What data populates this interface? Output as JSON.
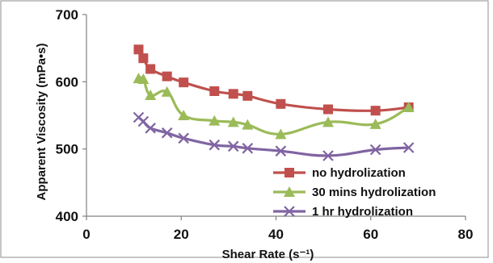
{
  "chart_data": {
    "type": "line",
    "title": "",
    "xlabel": "Shear Rate (s⁻¹)",
    "ylabel": "Apparent Viscosity  (mPa•s)",
    "xlim": [
      0,
      80
    ],
    "ylim": [
      400,
      700
    ],
    "xticks": [
      0,
      20,
      40,
      60,
      80
    ],
    "yticks": [
      400,
      500,
      600,
      700
    ],
    "grid": false,
    "legend_position": "bottom-right",
    "series": [
      {
        "name": "no hydrolization",
        "color": "#c0504d",
        "marker": "square",
        "x": [
          11,
          12,
          13.5,
          17,
          20.5,
          27,
          31,
          34,
          41,
          51,
          61,
          68
        ],
        "y": [
          648,
          635,
          619,
          608,
          599,
          586,
          582,
          579,
          567,
          559,
          557,
          562
        ]
      },
      {
        "name": "30 mins hydrolization",
        "color": "#9bbb59",
        "marker": "triangle",
        "x": [
          11,
          12,
          13.5,
          17,
          20.5,
          27,
          31,
          34,
          41,
          51,
          61,
          68
        ],
        "y": [
          605,
          604,
          580,
          585,
          550,
          542,
          540,
          536,
          522,
          540,
          537,
          562
        ]
      },
      {
        "name": "1 hr hydrolization",
        "color": "#8064a2",
        "marker": "x",
        "x": [
          11,
          12,
          13.5,
          17,
          20.5,
          27,
          31,
          34,
          41,
          51,
          61,
          68
        ],
        "y": [
          547,
          541,
          531,
          524,
          516,
          506,
          504,
          501,
          497,
          490,
          499,
          502
        ]
      }
    ]
  }
}
